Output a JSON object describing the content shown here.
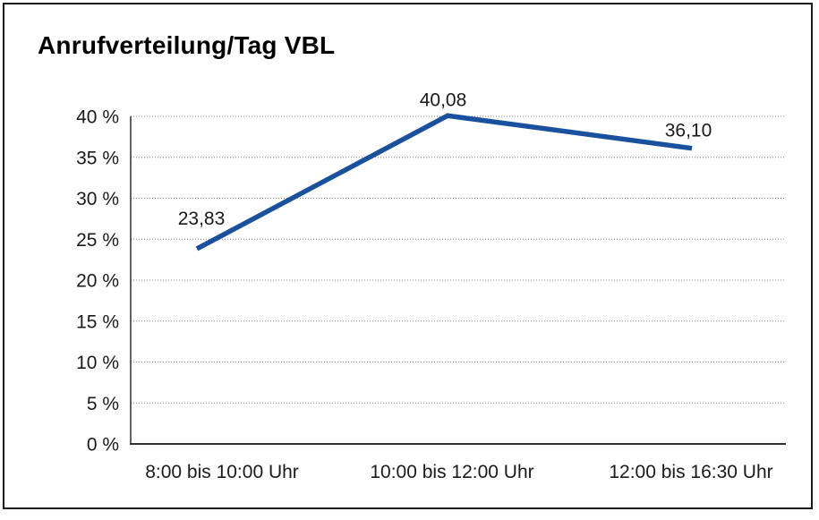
{
  "colors": {
    "line": "#1a519e",
    "grid": "#808080",
    "axis": "#2e2e2e",
    "text": "#1a1a1a",
    "border": "#1a1a1a",
    "background": "#ffffff"
  },
  "chart_data": {
    "type": "line",
    "title": "Anrufverteilung/Tag VBL",
    "categories": [
      "8:00 bis 10:00 Uhr",
      "10:00 bis 12:00 Uhr",
      "12:00 bis 16:30 Uhr"
    ],
    "values": [
      23.83,
      40.08,
      36.1
    ],
    "data_labels": [
      "23,83",
      "40,08",
      "36,10"
    ],
    "xlabel": "",
    "ylabel": "",
    "ylim": [
      0,
      40
    ],
    "ytick_step": 5,
    "ytick_labels": [
      "0 %",
      "5 %",
      "10 %",
      "15 %",
      "20 %",
      "25 %",
      "30 %",
      "35 %",
      "40 %"
    ],
    "grid": "horizontal-dotted",
    "legend": "none",
    "markers": "none"
  }
}
